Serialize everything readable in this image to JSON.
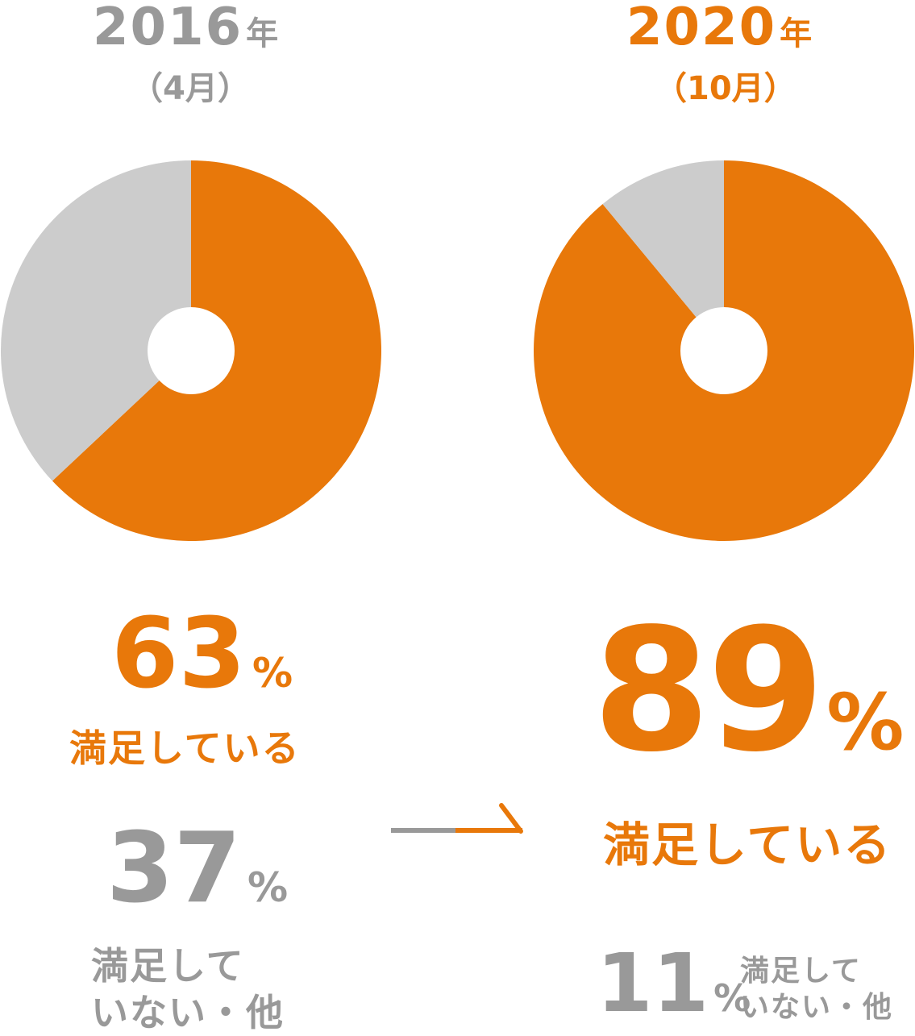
{
  "colors": {
    "satisfied": "#E8780A",
    "unsatisfied": "#CCCCCC",
    "gray_text": "#999999",
    "hole": "#FFFFFF"
  },
  "chart_data": [
    {
      "type": "pie",
      "title": "2016年（4月）",
      "year_label": "2016",
      "year_unit": "年",
      "month_label": "（4月）",
      "slices": [
        {
          "name": "満足している",
          "value": 63
        },
        {
          "name": "満足していない・他",
          "value": 37
        }
      ],
      "satisfied": {
        "value": "63",
        "unit": "%",
        "label": "満足している"
      },
      "unsatisfied": {
        "value": "37",
        "unit": "%",
        "label_line1": "満足して",
        "label_line2": "いない・他"
      }
    },
    {
      "type": "pie",
      "title": "2020年（10月）",
      "year_label": "2020",
      "year_unit": "年",
      "month_label": "（10月）",
      "slices": [
        {
          "name": "満足している",
          "value": 89
        },
        {
          "name": "満足していない・他",
          "value": 11
        }
      ],
      "satisfied": {
        "value": "89",
        "unit": "%",
        "label": "満足している"
      },
      "unsatisfied": {
        "value": "11",
        "unit": "%",
        "label_line1": "満足して",
        "label_line2": "いない・他"
      }
    }
  ],
  "arrow": {
    "icon": "arrow-right-icon"
  }
}
